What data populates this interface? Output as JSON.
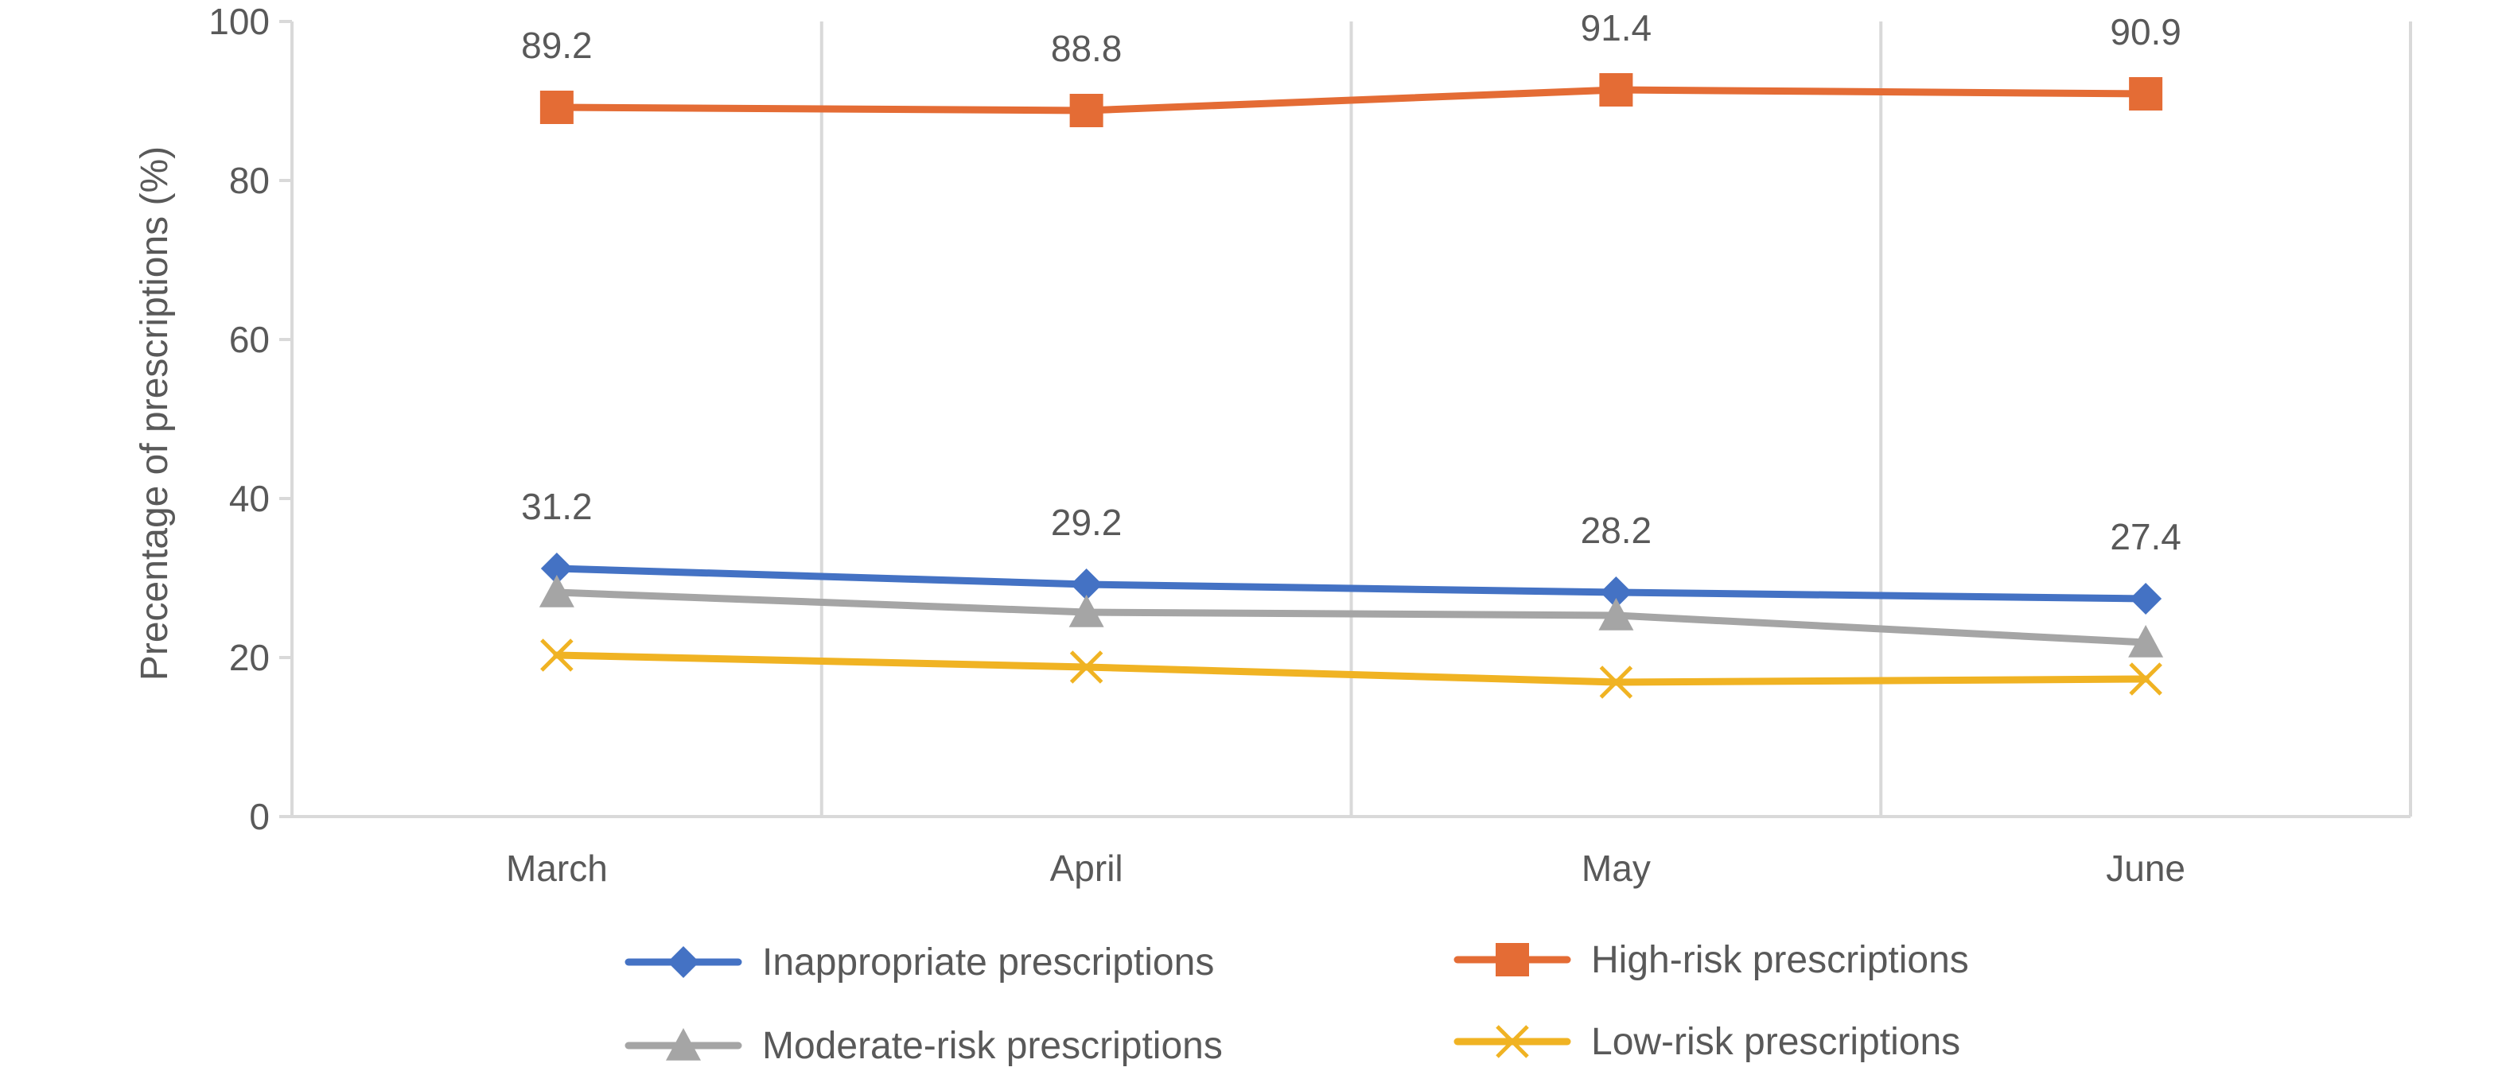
{
  "chart_data": {
    "type": "line",
    "categories": [
      "March",
      "April",
      "May",
      "June"
    ],
    "series": [
      {
        "name": "Inappropriate prescriptions",
        "values": [
          31.2,
          29.2,
          28.2,
          27.4
        ],
        "color": "#4472C4",
        "marker": "diamond",
        "labels": [
          "31.2",
          "29.2",
          "28.2",
          "27.4"
        ]
      },
      {
        "name": "High-risk prescriptions",
        "values": [
          89.2,
          88.8,
          91.4,
          90.9
        ],
        "color": "#E46C35",
        "marker": "square",
        "labels": [
          "89.2",
          "88.8",
          "91.4",
          "90.9"
        ]
      },
      {
        "name": "Moderate-risk prescriptions",
        "values": [
          28.2,
          25.7,
          25.3,
          21.9
        ],
        "color": "#A5A5A5",
        "marker": "triangle"
      },
      {
        "name": "Low-risk prescriptions",
        "values": [
          20.3,
          18.8,
          16.9,
          17.3
        ],
        "color": "#F0B323",
        "marker": "x"
      }
    ],
    "title": "",
    "xlabel": "",
    "ylabel": "Precentage of prescriptions (%)",
    "ylim": [
      0,
      100
    ],
    "yticks": [
      0,
      20,
      40,
      60,
      80,
      100
    ],
    "grid": "vertical",
    "legend": "bottom"
  }
}
